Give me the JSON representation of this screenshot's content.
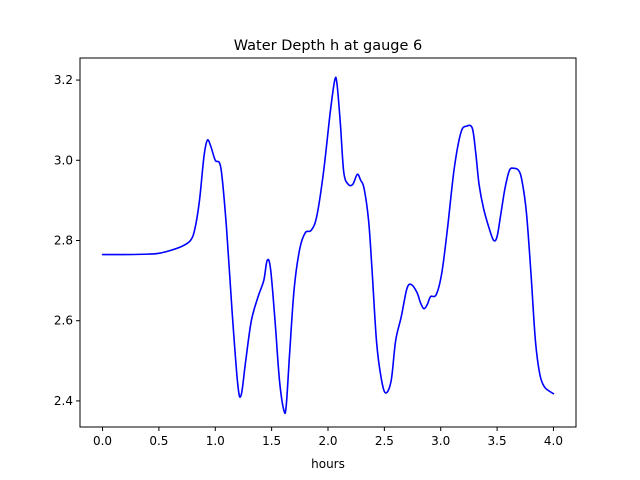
{
  "chart_data": {
    "type": "line",
    "title": "Water Depth h at gauge 6",
    "xlabel": "hours",
    "ylabel": "",
    "xlim": [
      -0.2,
      4.2
    ],
    "ylim": [
      2.335,
      3.255
    ],
    "xticks": [
      0.0,
      0.5,
      1.0,
      1.5,
      2.0,
      2.5,
      3.0,
      3.5,
      4.0
    ],
    "xtick_labels": [
      "0.0",
      "0.5",
      "1.0",
      "1.5",
      "2.0",
      "2.5",
      "3.0",
      "3.5",
      "4.0"
    ],
    "yticks": [
      2.4,
      2.6,
      2.8,
      3.0,
      3.2
    ],
    "ytick_labels": [
      "2.4",
      "2.6",
      "2.8",
      "3.0",
      "3.2"
    ],
    "grid": false,
    "legend": "none",
    "series": [
      {
        "color": "#0000ff",
        "x": [
          0.0,
          0.2,
          0.4,
          0.5,
          0.6,
          0.7,
          0.78,
          0.82,
          0.86,
          0.9,
          0.93,
          0.96,
          1.0,
          1.05,
          1.1,
          1.15,
          1.2,
          1.23,
          1.27,
          1.32,
          1.38,
          1.43,
          1.46,
          1.49,
          1.53,
          1.57,
          1.61,
          1.63,
          1.66,
          1.7,
          1.75,
          1.8,
          1.85,
          1.9,
          1.96,
          2.02,
          2.06,
          2.08,
          2.11,
          2.14,
          2.18,
          2.22,
          2.26,
          2.29,
          2.32,
          2.36,
          2.39,
          2.43,
          2.47,
          2.51,
          2.56,
          2.6,
          2.65,
          2.7,
          2.74,
          2.79,
          2.82,
          2.85,
          2.88,
          2.91,
          2.96,
          3.01,
          3.06,
          3.12,
          3.18,
          3.23,
          3.28,
          3.31,
          3.34,
          3.38,
          3.43,
          3.47,
          3.5,
          3.53,
          3.57,
          3.61,
          3.65,
          3.69,
          3.72,
          3.76,
          3.8,
          3.84,
          3.88,
          3.92,
          3.96,
          4.0
        ],
        "y": [
          2.765,
          2.765,
          2.766,
          2.768,
          2.775,
          2.785,
          2.8,
          2.83,
          2.9,
          3.01,
          3.05,
          3.035,
          3.0,
          2.98,
          2.83,
          2.62,
          2.44,
          2.415,
          2.5,
          2.6,
          2.66,
          2.7,
          2.75,
          2.73,
          2.6,
          2.45,
          2.375,
          2.39,
          2.52,
          2.68,
          2.78,
          2.82,
          2.825,
          2.86,
          2.97,
          3.12,
          3.2,
          3.19,
          3.09,
          2.97,
          2.94,
          2.94,
          2.965,
          2.95,
          2.93,
          2.85,
          2.73,
          2.55,
          2.46,
          2.42,
          2.45,
          2.55,
          2.61,
          2.68,
          2.69,
          2.67,
          2.645,
          2.63,
          2.64,
          2.66,
          2.665,
          2.72,
          2.83,
          2.98,
          3.07,
          3.085,
          3.08,
          3.02,
          2.94,
          2.88,
          2.83,
          2.8,
          2.81,
          2.86,
          2.93,
          2.975,
          2.98,
          2.975,
          2.95,
          2.87,
          2.72,
          2.55,
          2.465,
          2.435,
          2.425,
          2.418
        ]
      }
    ]
  }
}
